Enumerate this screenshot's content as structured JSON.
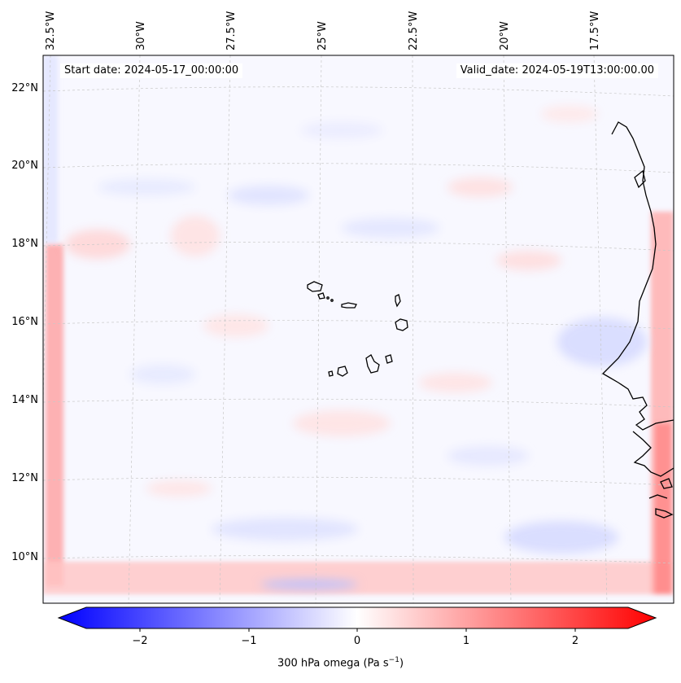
{
  "header": {
    "start_date": "Start date: 2024-05-17_00:00:00",
    "valid_date": "Valid_date: 2024-05-19T13:00:00.00"
  },
  "map": {
    "top_longitude_labels": [
      "32.5°W",
      "30°W",
      "27.5°W",
      "25°W",
      "22.5°W",
      "20°W",
      "17.5°W"
    ],
    "left_latitude_labels": [
      "22°N",
      "20°N",
      "18°N",
      "16°N",
      "14°N",
      "12°N",
      "10°N"
    ],
    "colors": {
      "background": "#f8f8ff",
      "negative": "#0000ff",
      "positive": "#ff0000",
      "coast": "#000000",
      "grid": "#c8c8c8"
    }
  },
  "colorbar": {
    "tick_labels": [
      "−2",
      "−1",
      "0",
      "1",
      "2"
    ],
    "label_main": "300 hPa omega (Pa s",
    "label_sup": "−1",
    "label_end": ")",
    "colormap": "bwr"
  }
}
